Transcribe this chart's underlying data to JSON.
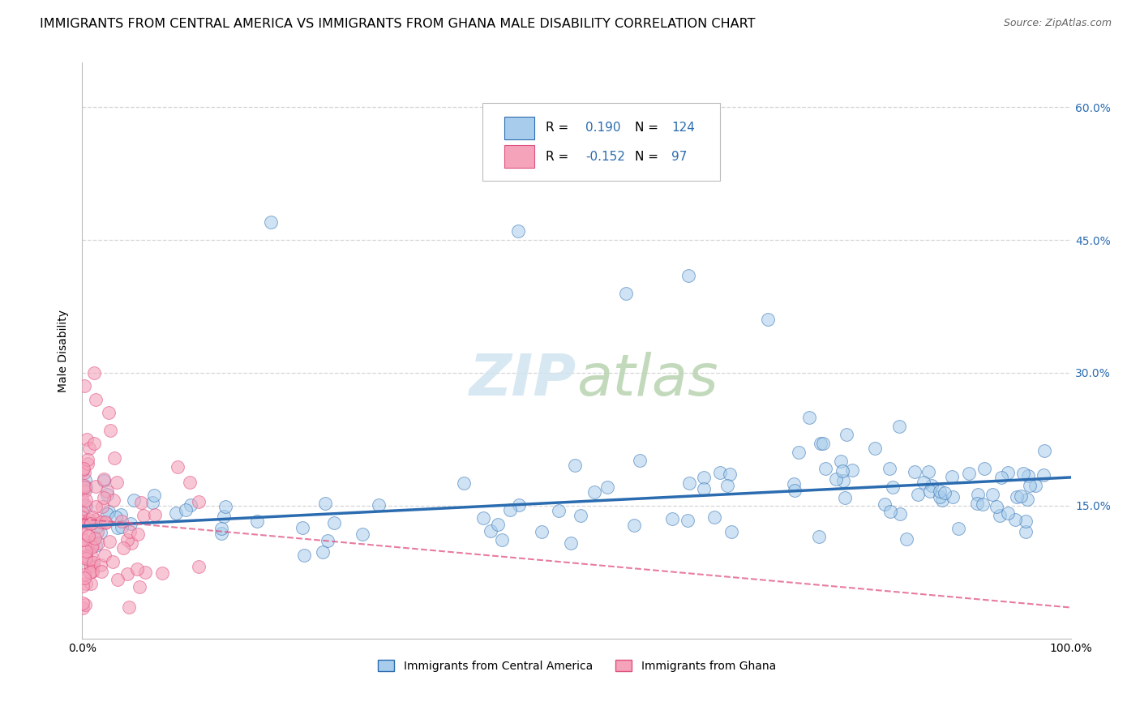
{
  "title": "IMMIGRANTS FROM CENTRAL AMERICA VS IMMIGRANTS FROM GHANA MALE DISABILITY CORRELATION CHART",
  "source": "Source: ZipAtlas.com",
  "ylabel": "Male Disability",
  "xlim": [
    0.0,
    1.0
  ],
  "ylim": [
    0.0,
    0.65
  ],
  "ytick_values": [
    0.15,
    0.3,
    0.45,
    0.6
  ],
  "color_blue": "#A8CDEC",
  "color_pink": "#F4A3BB",
  "color_blue_line": "#2B6CB0",
  "color_pink_line": "#E05080",
  "background": "#FFFFFF",
  "grid_color": "#CCCCCC",
  "n_blue": 124,
  "n_pink": 97,
  "R_blue": 0.19,
  "R_pink": -0.152,
  "title_fontsize": 11.5,
  "axis_label_fontsize": 10,
  "tick_fontsize": 10,
  "legend_fontsize": 12,
  "watermark": "ZIPatlas",
  "watermark_zip": "ZIP",
  "watermark_atlas": "atlas"
}
